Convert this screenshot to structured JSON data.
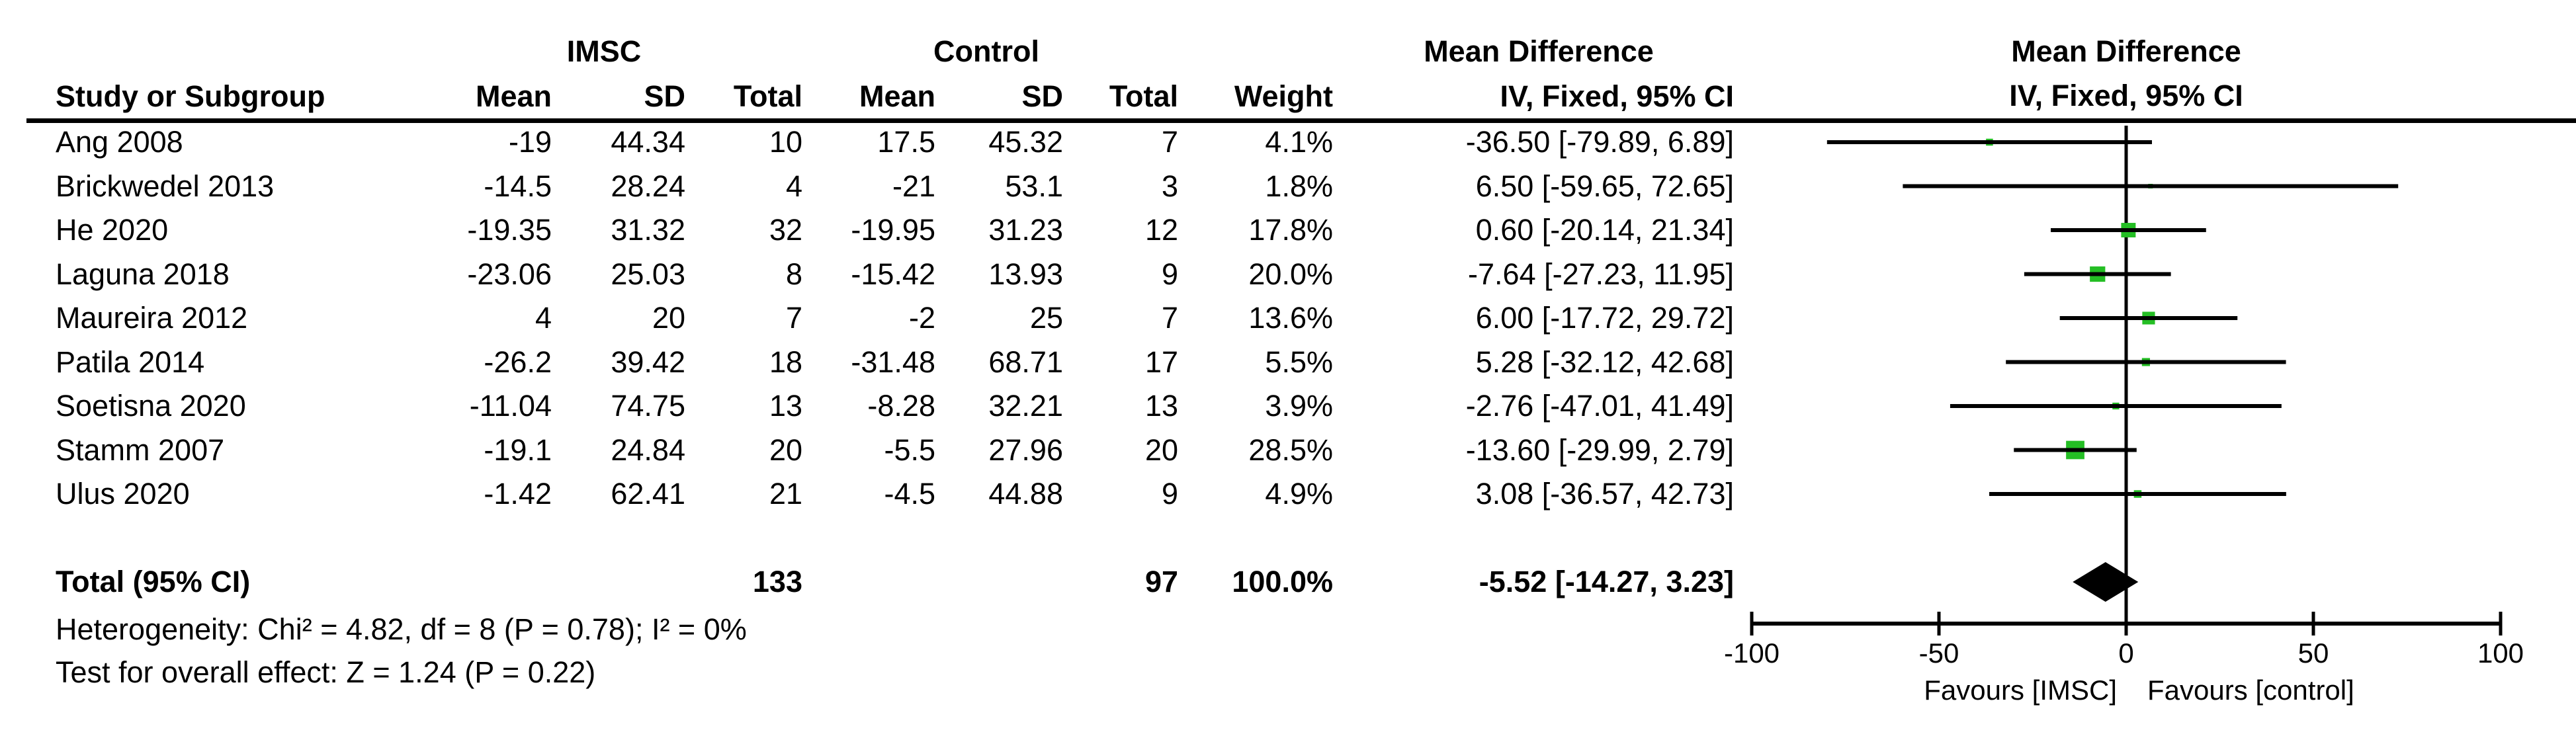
{
  "header": {
    "group_imsc": "IMSC",
    "group_control": "Control",
    "md_table_title": "Mean Difference",
    "md_plot_title": "Mean Difference",
    "col_study": "Study or Subgroup",
    "col_mean": "Mean",
    "col_sd": "SD",
    "col_total": "Total",
    "col_weight": "Weight",
    "col_ci": "IV, Fixed, 95% CI",
    "plot_ci": "IV, Fixed, 95% CI"
  },
  "totals": {
    "label": "Total (95% CI)",
    "imsc_total": "133",
    "control_total": "97",
    "weight": "100.0%",
    "ci_text": "-5.52 [-14.27, 3.23]"
  },
  "footer": {
    "heterogeneity": "Heterogeneity: Chi² = 4.82, df = 8 (P = 0.78); I² = 0%",
    "overall_effect": "Test for overall effect: Z = 1.24 (P = 0.22)"
  },
  "chart_data": {
    "type": "forest",
    "title": "Mean Difference IV, Fixed, 95% CI",
    "effect_measure": "Mean Difference",
    "model": "IV, Fixed, 95% CI",
    "marker_color": "#24BE24",
    "line_color": "#000000",
    "axis": {
      "min": -100,
      "max": 100,
      "ticks": [
        -100,
        -50,
        0,
        50,
        100
      ]
    },
    "favours_left": "Favours [IMSC]",
    "favours_right": "Favours [control]",
    "studies": [
      {
        "label": "Ang 2008",
        "imsc_mean": "-19",
        "imsc_sd": "44.34",
        "imsc_total": "10",
        "ctrl_mean": "17.5",
        "ctrl_sd": "45.32",
        "ctrl_total": "7",
        "weight": "4.1%",
        "ci_text": "-36.50 [-79.89, 6.89]",
        "md": -36.5,
        "lo": -79.89,
        "hi": 6.89,
        "w": 4.1
      },
      {
        "label": "Brickwedel 2013",
        "imsc_mean": "-14.5",
        "imsc_sd": "28.24",
        "imsc_total": "4",
        "ctrl_mean": "-21",
        "ctrl_sd": "53.1",
        "ctrl_total": "3",
        "weight": "1.8%",
        "ci_text": "6.50 [-59.65, 72.65]",
        "md": 6.5,
        "lo": -59.65,
        "hi": 72.65,
        "w": 1.8
      },
      {
        "label": "He 2020",
        "imsc_mean": "-19.35",
        "imsc_sd": "31.32",
        "imsc_total": "32",
        "ctrl_mean": "-19.95",
        "ctrl_sd": "31.23",
        "ctrl_total": "12",
        "weight": "17.8%",
        "ci_text": "0.60 [-20.14, 21.34]",
        "md": 0.6,
        "lo": -20.14,
        "hi": 21.34,
        "w": 17.8
      },
      {
        "label": "Laguna 2018",
        "imsc_mean": "-23.06",
        "imsc_sd": "25.03",
        "imsc_total": "8",
        "ctrl_mean": "-15.42",
        "ctrl_sd": "13.93",
        "ctrl_total": "9",
        "weight": "20.0%",
        "ci_text": "-7.64 [-27.23, 11.95]",
        "md": -7.64,
        "lo": -27.23,
        "hi": 11.95,
        "w": 20.0
      },
      {
        "label": "Maureira 2012",
        "imsc_mean": "4",
        "imsc_sd": "20",
        "imsc_total": "7",
        "ctrl_mean": "-2",
        "ctrl_sd": "25",
        "ctrl_total": "7",
        "weight": "13.6%",
        "ci_text": "6.00 [-17.72, 29.72]",
        "md": 6.0,
        "lo": -17.72,
        "hi": 29.72,
        "w": 13.6
      },
      {
        "label": "Patila 2014",
        "imsc_mean": "-26.2",
        "imsc_sd": "39.42",
        "imsc_total": "18",
        "ctrl_mean": "-31.48",
        "ctrl_sd": "68.71",
        "ctrl_total": "17",
        "weight": "5.5%",
        "ci_text": "5.28 [-32.12, 42.68]",
        "md": 5.28,
        "lo": -32.12,
        "hi": 42.68,
        "w": 5.5
      },
      {
        "label": "Soetisna 2020",
        "imsc_mean": "-11.04",
        "imsc_sd": "74.75",
        "imsc_total": "13",
        "ctrl_mean": "-8.28",
        "ctrl_sd": "32.21",
        "ctrl_total": "13",
        "weight": "3.9%",
        "ci_text": "-2.76 [-47.01, 41.49]",
        "md": -2.76,
        "lo": -47.01,
        "hi": 41.49,
        "w": 3.9
      },
      {
        "label": "Stamm 2007",
        "imsc_mean": "-19.1",
        "imsc_sd": "24.84",
        "imsc_total": "20",
        "ctrl_mean": "-5.5",
        "ctrl_sd": "27.96",
        "ctrl_total": "20",
        "weight": "28.5%",
        "ci_text": "-13.60 [-29.99, 2.79]",
        "md": -13.6,
        "lo": -29.99,
        "hi": 2.79,
        "w": 28.5
      },
      {
        "label": "Ulus 2020",
        "imsc_mean": "-1.42",
        "imsc_sd": "62.41",
        "imsc_total": "21",
        "ctrl_mean": "-4.5",
        "ctrl_sd": "44.88",
        "ctrl_total": "9",
        "weight": "4.9%",
        "ci_text": "3.08 [-36.57, 42.73]",
        "md": 3.08,
        "lo": -36.57,
        "hi": 42.73,
        "w": 4.9
      }
    ],
    "overall": {
      "label": "Total (95% CI)",
      "md": -5.52,
      "lo": -14.27,
      "hi": 3.23,
      "weight": 100.0
    }
  }
}
